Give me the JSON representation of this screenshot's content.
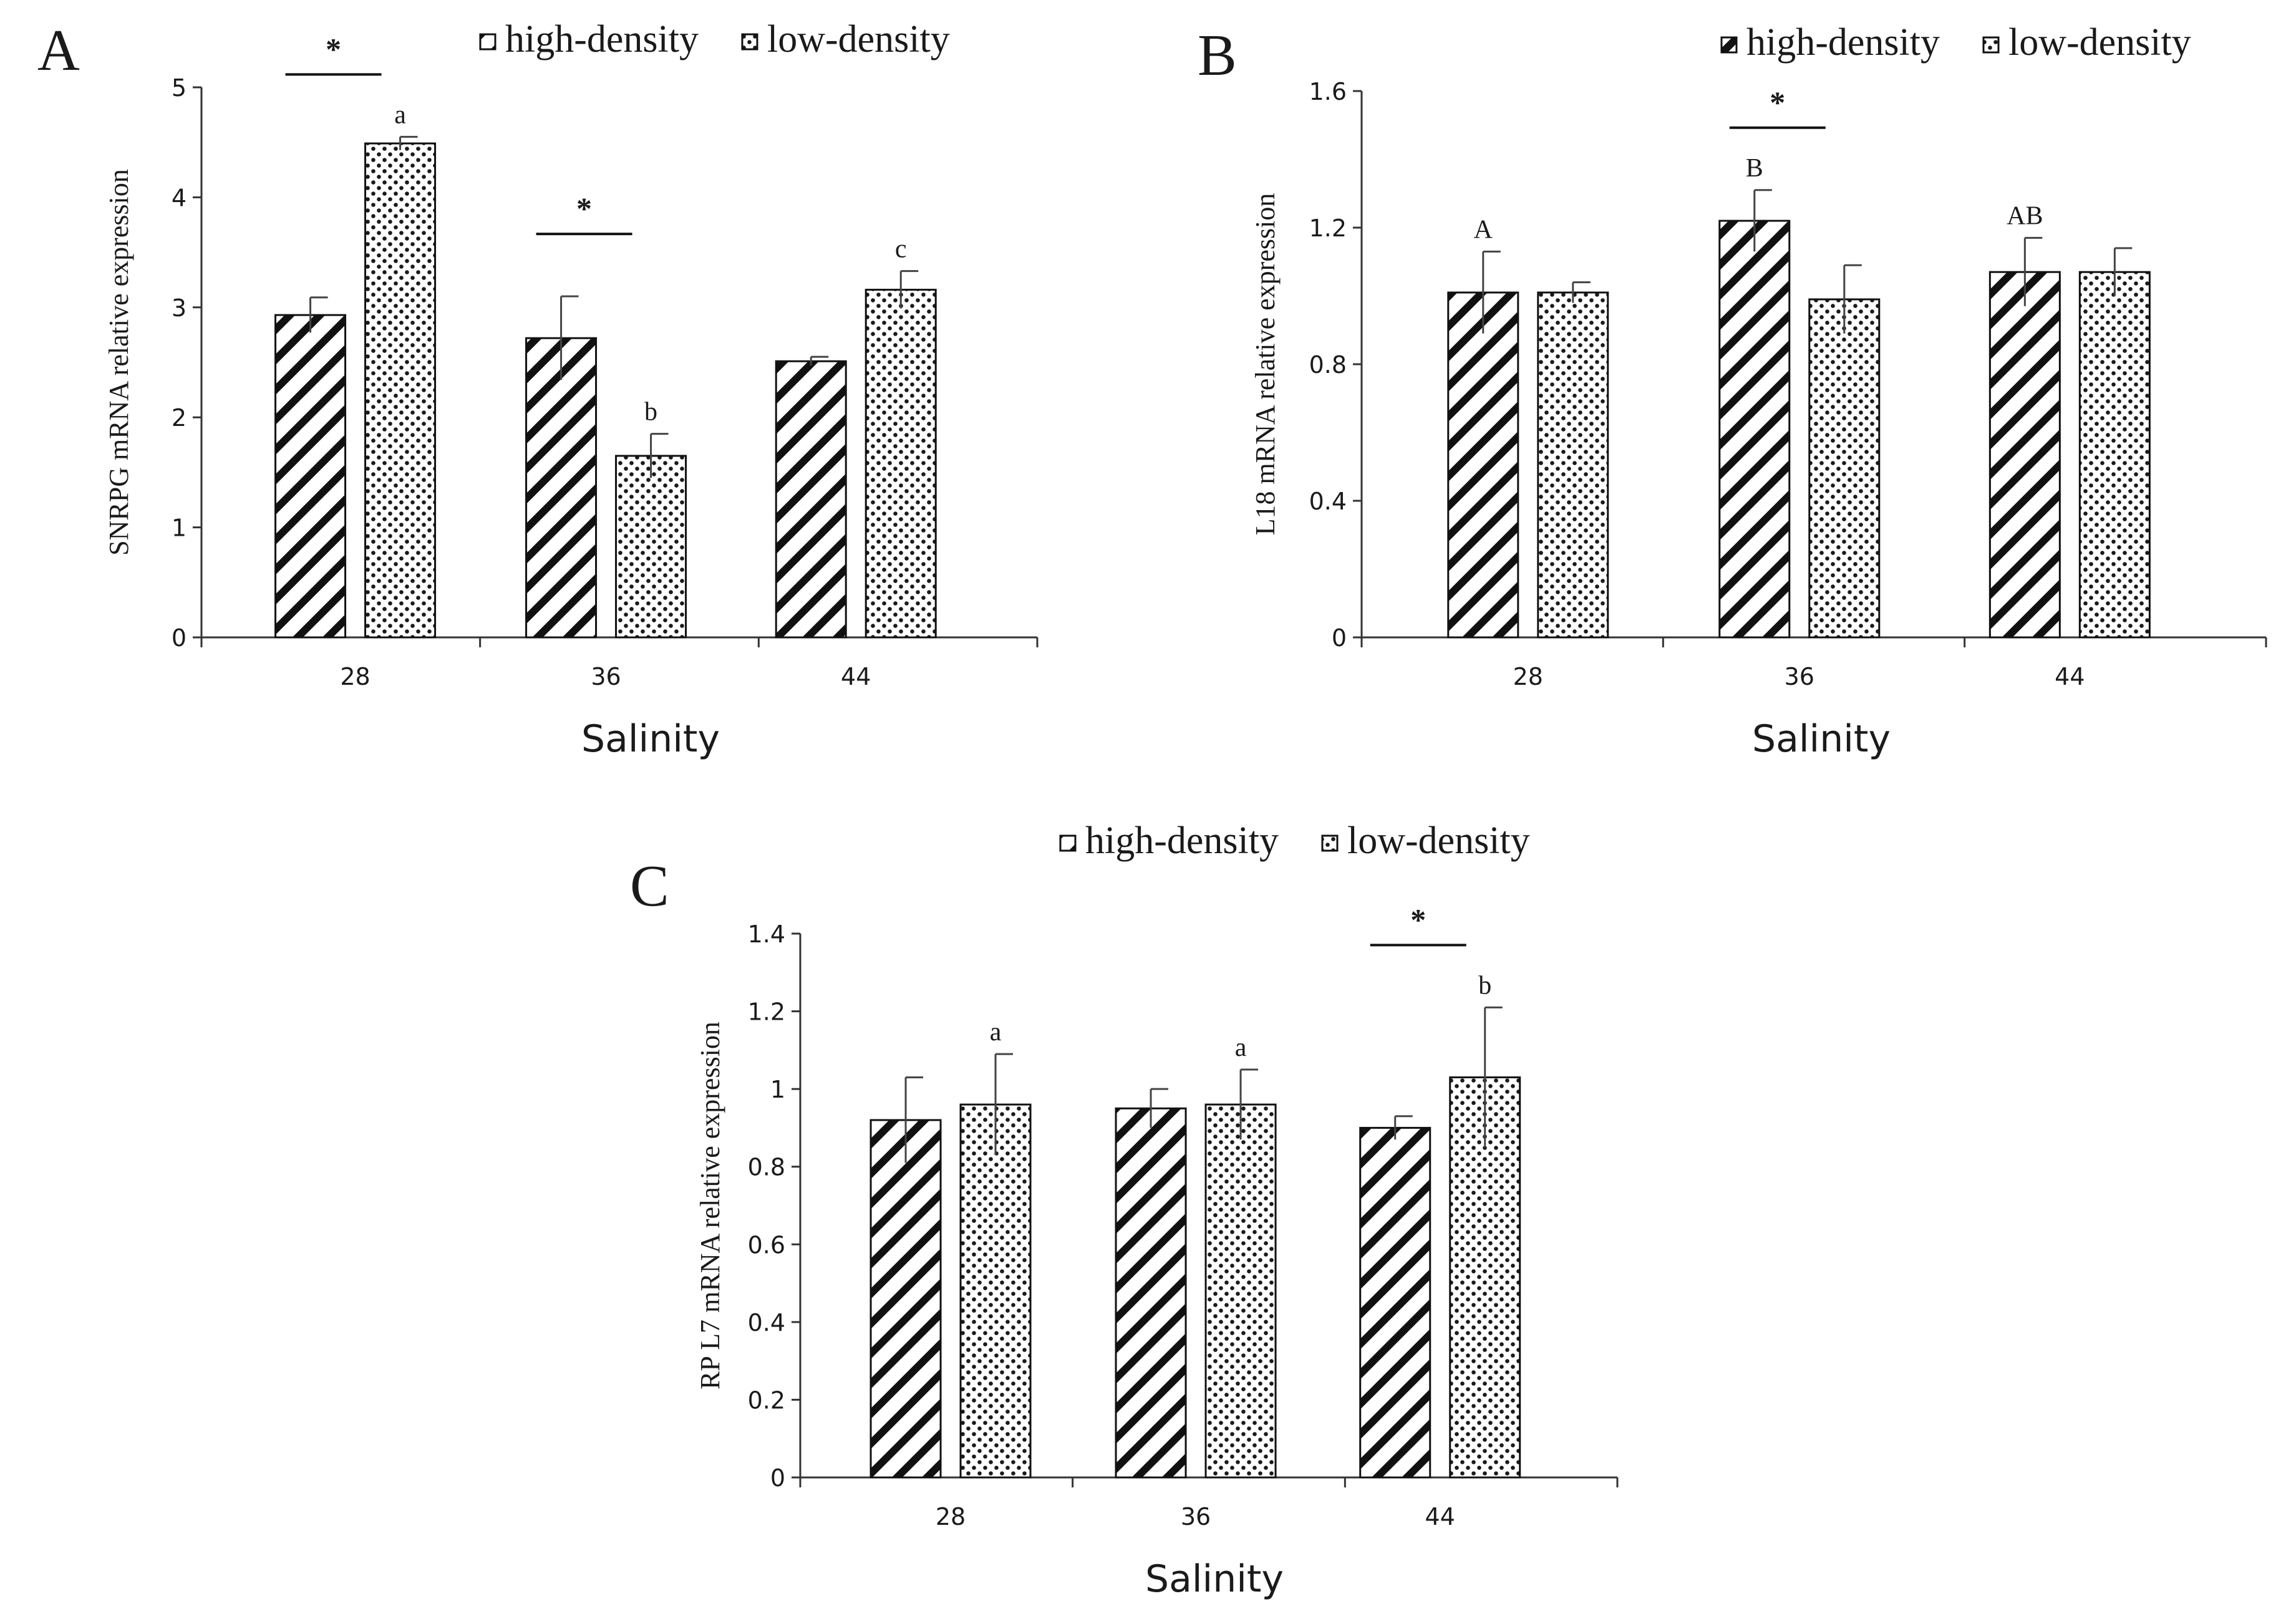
{
  "figure": {
    "legend_high": "high-density",
    "legend_low": "low-density"
  },
  "chart_data": [
    {
      "type": "bar",
      "panel_label": "A",
      "title": "",
      "xlabel": "Salinity",
      "ylabel": "SNRPG  mRNA relative expression",
      "categories": [
        "28",
        "36",
        "44"
      ],
      "ylim": [
        0,
        5
      ],
      "yticks": [
        "0",
        "1",
        "2",
        "3",
        "4",
        "5"
      ],
      "legend_position": "top-right",
      "series": [
        {
          "name": "high-density",
          "pattern": "diagonal-hatch",
          "values": [
            2.93,
            2.72,
            2.51
          ],
          "errors": [
            0.16,
            0.38,
            0.04
          ]
        },
        {
          "name": "low-density",
          "pattern": "dots",
          "values": [
            4.49,
            1.65,
            3.16
          ],
          "errors": [
            0.06,
            0.2,
            0.17
          ]
        }
      ],
      "letter_labels": [
        {
          "category": "28",
          "series": "low-density",
          "text": "a"
        },
        {
          "category": "36",
          "series": "low-density",
          "text": "b"
        },
        {
          "category": "44",
          "series": "low-density",
          "text": "c"
        }
      ],
      "significance": [
        {
          "category": "28",
          "text": "*"
        },
        {
          "category": "36",
          "text": "*"
        }
      ]
    },
    {
      "type": "bar",
      "panel_label": "B",
      "title": "",
      "xlabel": "Salinity",
      "ylabel": "L18 mRNA relative expression",
      "categories": [
        "28",
        "36",
        "44"
      ],
      "ylim": [
        0,
        1.6
      ],
      "yticks": [
        "0",
        "0.4",
        "0.8",
        "1.2",
        "1.6"
      ],
      "legend_position": "top-right",
      "series": [
        {
          "name": "high-density",
          "pattern": "diagonal-hatch",
          "values": [
            1.01,
            1.22,
            1.07
          ],
          "errors": [
            0.12,
            0.09,
            0.1
          ]
        },
        {
          "name": "low-density",
          "pattern": "dots",
          "values": [
            1.01,
            0.99,
            1.07
          ],
          "errors": [
            0.03,
            0.1,
            0.07
          ]
        }
      ],
      "letter_labels": [
        {
          "category": "28",
          "series": "high-density",
          "text": "A"
        },
        {
          "category": "36",
          "series": "high-density",
          "text": "B"
        },
        {
          "category": "44",
          "series": "high-density",
          "text": "AB"
        }
      ],
      "significance": [
        {
          "category": "36",
          "text": "*"
        }
      ]
    },
    {
      "type": "bar",
      "panel_label": "C",
      "title": "",
      "xlabel": "Salinity",
      "ylabel": "RP L7 mRNA relative expression",
      "categories": [
        "28",
        "36",
        "44"
      ],
      "ylim": [
        0,
        1.4
      ],
      "yticks": [
        "0",
        "0.2",
        "0.4",
        "0.6",
        "0.8",
        "1",
        "1.2",
        "1.4"
      ],
      "legend_position": "top",
      "series": [
        {
          "name": "high-density",
          "pattern": "diagonal-hatch",
          "values": [
            0.92,
            0.95,
            0.9
          ],
          "errors": [
            0.11,
            0.05,
            0.03
          ]
        },
        {
          "name": "low-density",
          "pattern": "dots",
          "values": [
            0.96,
            0.96,
            1.03
          ],
          "errors": [
            0.13,
            0.09,
            0.18
          ]
        }
      ],
      "letter_labels": [
        {
          "category": "28",
          "series": "low-density",
          "text": "a"
        },
        {
          "category": "36",
          "series": "low-density",
          "text": "a"
        },
        {
          "category": "44",
          "series": "low-density",
          "text": "b"
        }
      ],
      "significance": [
        {
          "category": "44",
          "text": "*"
        }
      ]
    }
  ]
}
